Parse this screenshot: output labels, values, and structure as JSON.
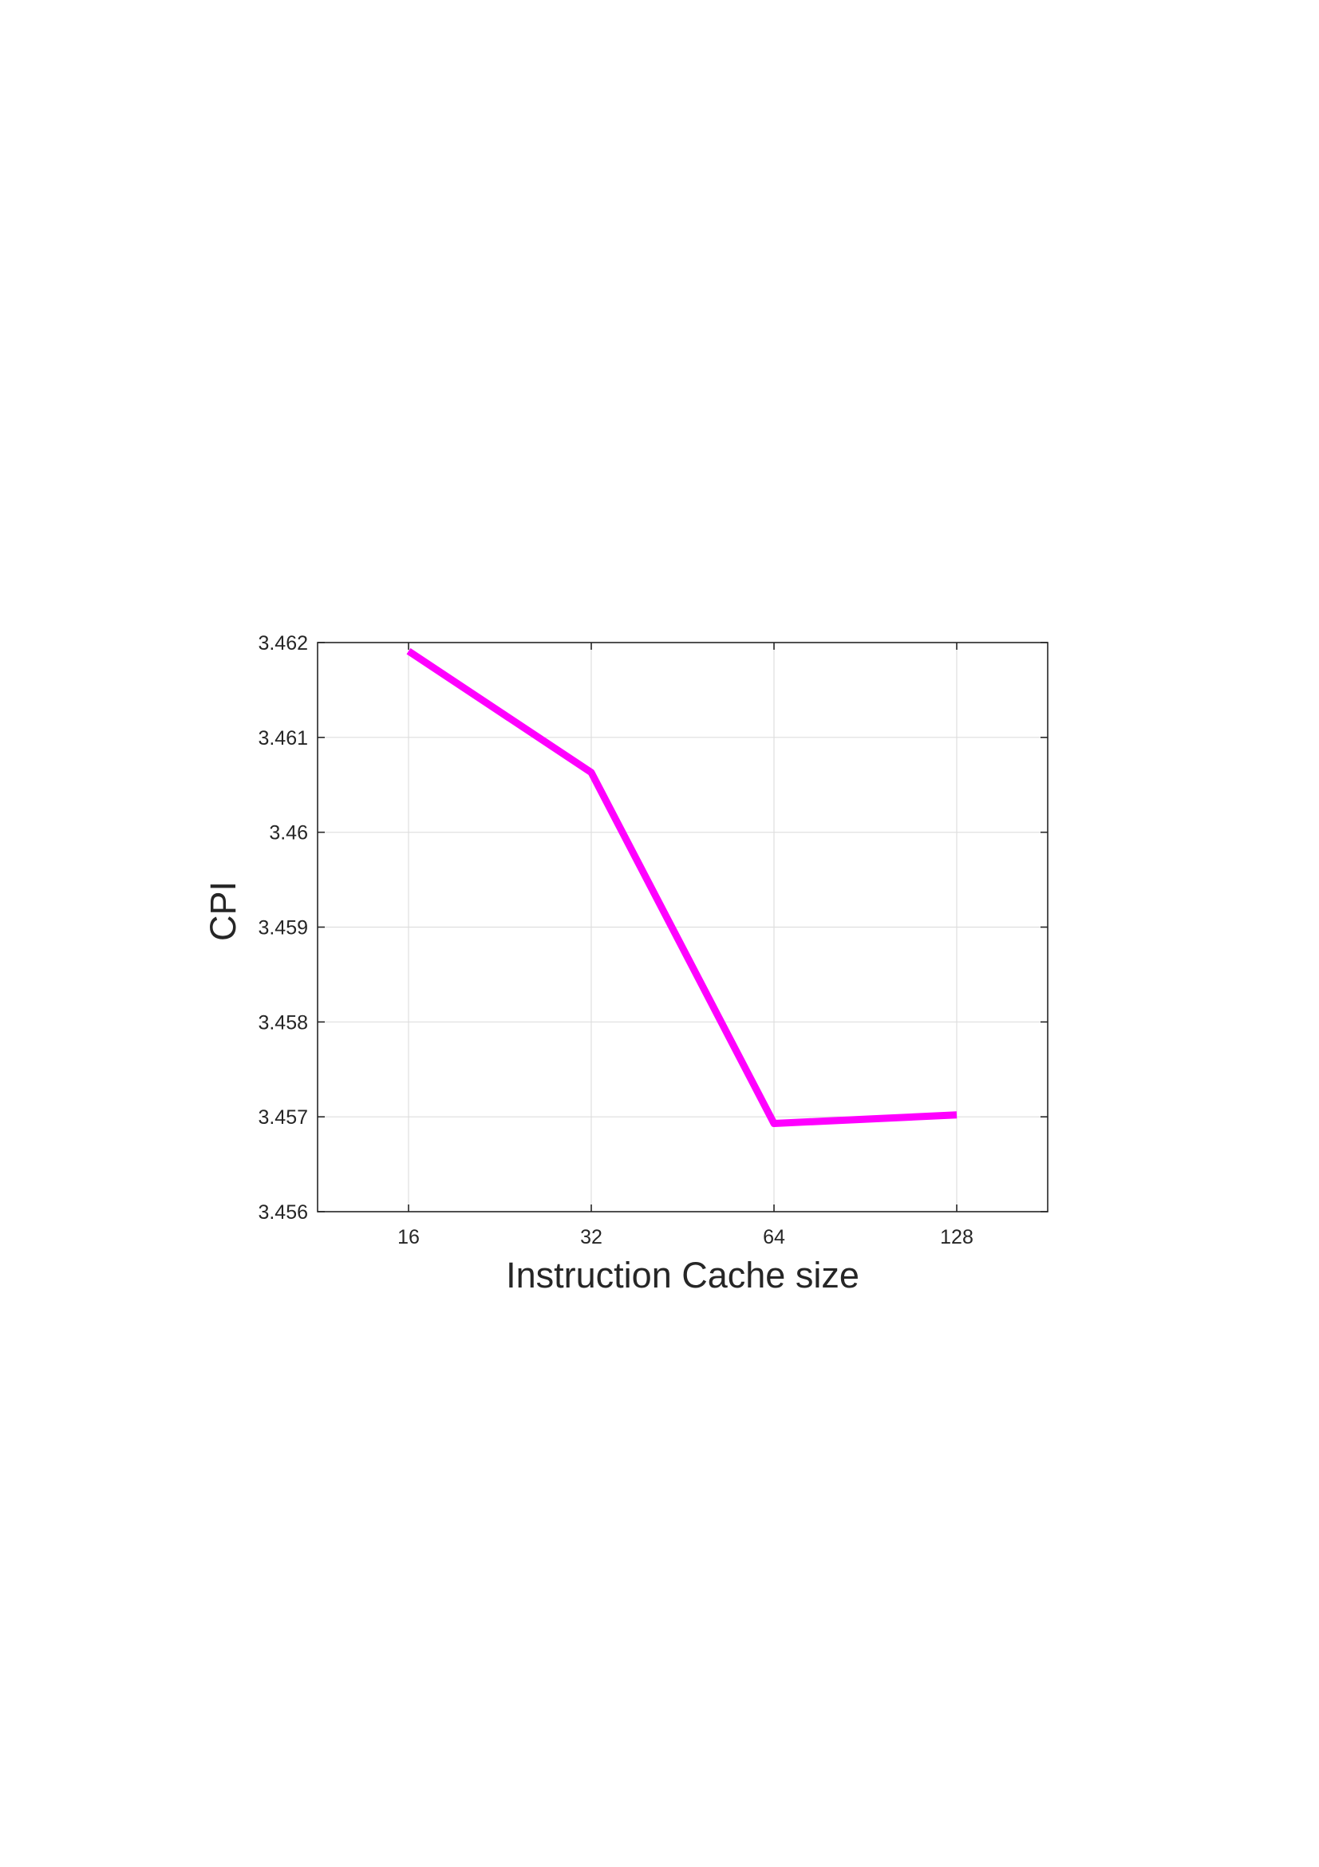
{
  "chart_data": {
    "type": "line",
    "title": "",
    "xlabel": "Instruction Cache size",
    "ylabel": "CPI",
    "x": [
      "16",
      "32",
      "64",
      "128"
    ],
    "series": [
      {
        "values": [
          3.46191,
          3.46063,
          3.45693,
          3.45702
        ],
        "color": "#ff00ff"
      }
    ],
    "ylim": [
      3.456,
      3.462
    ],
    "yticks": [
      "3.456",
      "3.457",
      "3.458",
      "3.459",
      "3.46",
      "3.461",
      "3.462"
    ],
    "xticks": [
      "16",
      "32",
      "64",
      "128"
    ],
    "grid": true,
    "legend": "none"
  }
}
